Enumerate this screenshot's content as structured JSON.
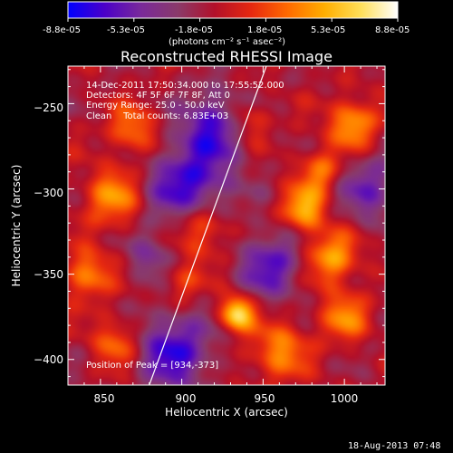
{
  "colorbar": {
    "tick_labels": [
      "-8.8e-05",
      "-5.3e-05",
      "-1.8e-05",
      "1.8e-05",
      "5.3e-05",
      "8.8e-05"
    ],
    "range": [
      -8.8e-05,
      8.8e-05
    ],
    "units": "(photons cm⁻² s⁻¹ asec⁻²)",
    "colors": [
      "#0000ff",
      "#4b00c8",
      "#7a2a9a",
      "#8a3a6a",
      "#b2102a",
      "#e62810",
      "#ff6a00",
      "#ffae00",
      "#ffdf5a",
      "#ffffff"
    ]
  },
  "chart_data": {
    "type": "heatmap",
    "title": "Reconstructed RHESSI Image",
    "xlabel": "Heliocentric X (arcsec)",
    "ylabel": "Heliocentric Y (arcsec)",
    "xlim": [
      830,
      1025
    ],
    "ylim": [
      -415,
      -228
    ],
    "x_ticks": [
      850,
      900,
      950,
      1000
    ],
    "x_tick_labels": [
      "850",
      "900",
      "950",
      "1000"
    ],
    "y_ticks": [
      -250,
      -300,
      -350,
      -400
    ],
    "y_tick_labels": [
      "−250",
      "−300",
      "−350",
      "−400"
    ],
    "annotations": [
      "14-Dec-2011 17:50:34.000 to 17:55:52.000",
      "Detectors: 4F 5F 6F 7F 8F, Att 0",
      "Energy Range: 25.0 - 50.0 keV",
      "Clean    Total counts: 6.83E+03"
    ],
    "peak_label": "Position of Peak = [934,-373]",
    "peak": [
      934,
      -373
    ],
    "limb_line": {
      "x": [
        880,
        952
      ],
      "y": [
        -415,
        -228
      ]
    },
    "sources": [
      {
        "x": 934,
        "y": -373,
        "v": 8.8e-05,
        "s": 7
      },
      {
        "x": 912,
        "y": -322,
        "v": 5.5e-05,
        "s": 12
      },
      {
        "x": 975,
        "y": -312,
        "v": 6.5e-05,
        "s": 9
      },
      {
        "x": 992,
        "y": -340,
        "v": 5.8e-05,
        "s": 11
      },
      {
        "x": 1005,
        "y": -262,
        "v": 6e-05,
        "s": 10
      },
      {
        "x": 858,
        "y": -305,
        "v": 5.2e-05,
        "s": 12
      },
      {
        "x": 842,
        "y": -350,
        "v": 5e-05,
        "s": 10
      },
      {
        "x": 870,
        "y": -265,
        "v": 4.5e-05,
        "s": 10
      },
      {
        "x": 860,
        "y": -390,
        "v": 4.2e-05,
        "s": 10
      },
      {
        "x": 960,
        "y": -395,
        "v": 5e-05,
        "s": 12
      },
      {
        "x": 1000,
        "y": -375,
        "v": 4.8e-05,
        "s": 10
      },
      {
        "x": 940,
        "y": -260,
        "v": 3.5e-05,
        "s": 9
      },
      {
        "x": 985,
        "y": -290,
        "v": 4.5e-05,
        "s": 9
      },
      {
        "x": 900,
        "y": -355,
        "v": 3e-05,
        "s": 9
      },
      {
        "x": 905,
        "y": -300,
        "v": -6.5e-05,
        "s": 18
      },
      {
        "x": 920,
        "y": -262,
        "v": -5.5e-05,
        "s": 14
      },
      {
        "x": 895,
        "y": -395,
        "v": -6e-05,
        "s": 16
      },
      {
        "x": 955,
        "y": -345,
        "v": -5e-05,
        "s": 14
      },
      {
        "x": 1015,
        "y": -300,
        "v": -4e-05,
        "s": 14
      },
      {
        "x": 880,
        "y": -340,
        "v": -3e-05,
        "s": 10
      }
    ]
  },
  "footer": {
    "timestamp": "18-Aug-2013 07:48"
  }
}
